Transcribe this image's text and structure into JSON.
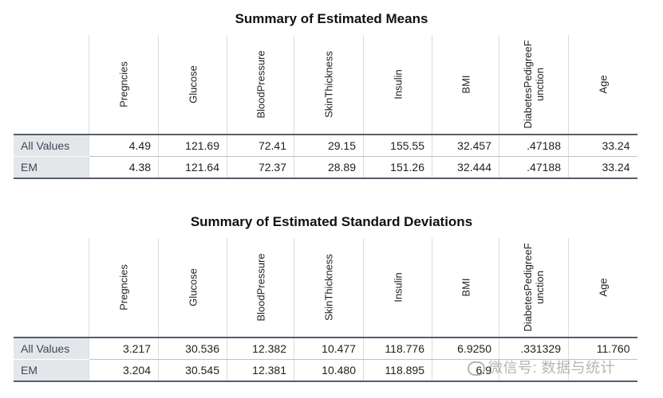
{
  "means": {
    "title": "Summary of Estimated Means",
    "columns": [
      "Pregncies",
      "Glucose",
      "BloodPressure",
      "SkinThickness",
      "Insulin",
      "BMI",
      "DiabetesPedigreeF unction",
      "Age"
    ],
    "rows": [
      {
        "label": "All Values",
        "values": [
          "4.49",
          "121.69",
          "72.41",
          "29.15",
          "155.55",
          "32.457",
          ".47188",
          "33.24"
        ]
      },
      {
        "label": "EM",
        "values": [
          "4.38",
          "121.64",
          "72.37",
          "28.89",
          "151.26",
          "32.444",
          ".47188",
          "33.24"
        ]
      }
    ]
  },
  "sds": {
    "title": "Summary of Estimated Standard Deviations",
    "columns": [
      "Pregncies",
      "Glucose",
      "BloodPressure",
      "SkinThickness",
      "Insulin",
      "BMI",
      "DiabetesPedigreeF unction",
      "Age"
    ],
    "rows": [
      {
        "label": "All Values",
        "values": [
          "3.217",
          "30.536",
          "12.382",
          "10.477",
          "118.776",
          "6.9250",
          ".331329",
          "11.760"
        ]
      },
      {
        "label": "EM",
        "values": [
          "3.204",
          "30.545",
          "12.381",
          "10.480",
          "118.895",
          "6.9",
          "",
          ""
        ]
      }
    ]
  },
  "watermark": {
    "text": "微信号: 数据与统计",
    "icon": "wechat-icon"
  }
}
